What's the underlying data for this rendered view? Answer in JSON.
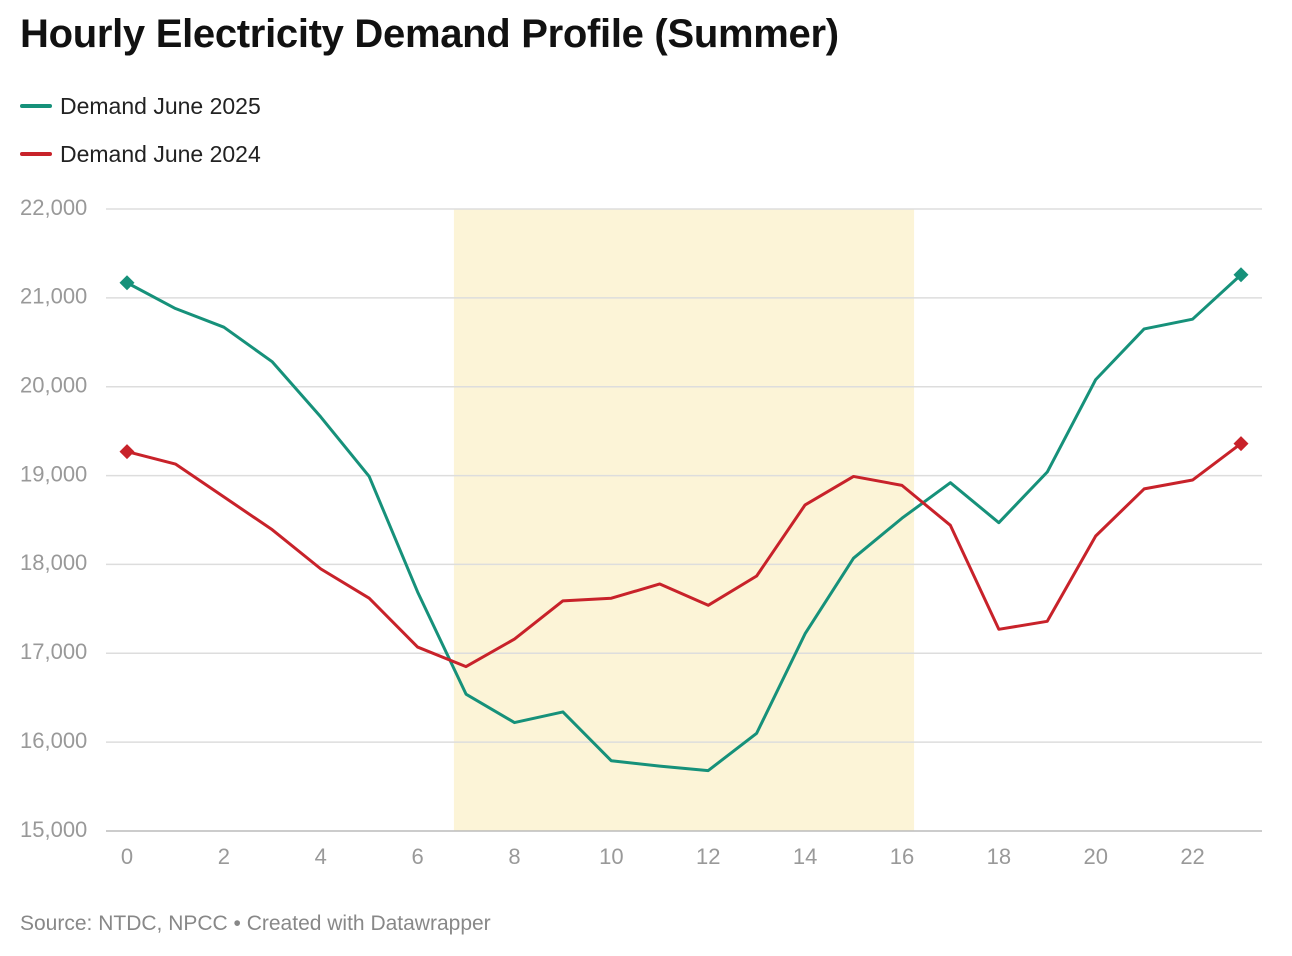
{
  "title": "Hourly Electricity Demand Profile (Summer)",
  "source": "Source: NTDC, NPCC • Created with Datawrapper",
  "colors": {
    "green": "#16917a",
    "red": "#c8222a",
    "highlight": "#fcf4d7",
    "grid": "#dddddd",
    "tick": "#999999"
  },
  "chart_data": {
    "type": "line",
    "title": "Hourly Electricity Demand Profile (Summer)",
    "xlabel": "",
    "ylabel": "",
    "x": [
      0,
      1,
      2,
      3,
      4,
      5,
      6,
      7,
      8,
      9,
      10,
      11,
      12,
      13,
      14,
      15,
      16,
      17,
      18,
      19,
      20,
      21,
      22,
      23
    ],
    "xlim": [
      0,
      23
    ],
    "ylim": [
      15000,
      22000
    ],
    "x_ticks": [
      0,
      2,
      4,
      6,
      8,
      10,
      12,
      14,
      16,
      18,
      20,
      22
    ],
    "x_tick_labels": [
      "0",
      "2",
      "4",
      "6",
      "8",
      "10",
      "12",
      "14",
      "16",
      "18",
      "20",
      "22"
    ],
    "y_ticks": [
      15000,
      16000,
      17000,
      18000,
      19000,
      20000,
      21000,
      22000
    ],
    "y_tick_labels": [
      "15,000",
      "16,000",
      "17,000",
      "18,000",
      "19,000",
      "20,000",
      "21,000",
      "22,000"
    ],
    "highlight_range": [
      6.75,
      16.25
    ],
    "series": [
      {
        "name": "Demand June 2025",
        "color": "#16917a",
        "values": [
          21170,
          20880,
          20670,
          20280,
          19660,
          18990,
          17690,
          16540,
          16220,
          16340,
          15790,
          15730,
          15680,
          16100,
          17220,
          18070,
          18520,
          18920,
          18470,
          19040,
          20080,
          20650,
          20760,
          21260
        ]
      },
      {
        "name": "Demand June 2024",
        "color": "#c8222a",
        "values": [
          19270,
          19130,
          18760,
          18390,
          17950,
          17620,
          17070,
          16850,
          17160,
          17590,
          17620,
          17780,
          17540,
          17870,
          18670,
          18990,
          18890,
          18440,
          17270,
          17360,
          18320,
          18850,
          18950,
          19360
        ]
      }
    ]
  }
}
